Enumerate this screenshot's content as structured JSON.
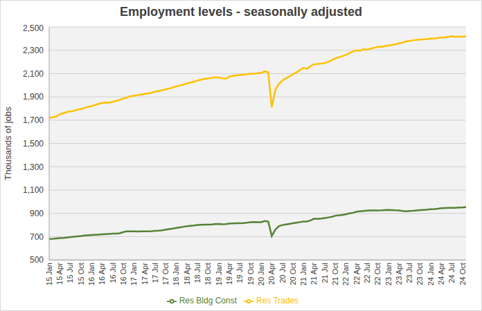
{
  "chart_data": {
    "type": "line",
    "title": "Employment levels - seasonally adjusted",
    "y_label": "Thousands of jobs",
    "categories": [
      "15 Jan",
      null,
      null,
      "15 Apr",
      null,
      null,
      "15 Jul",
      null,
      null,
      "15 Oct",
      null,
      null,
      "16 Jan",
      null,
      null,
      "16 Apr",
      null,
      null,
      "16 Jul",
      null,
      null,
      "16 Oct",
      null,
      null,
      "17 Jan",
      null,
      null,
      "17 Apr",
      null,
      null,
      "17 Jul",
      null,
      null,
      "17 Oct",
      null,
      null,
      "18 Jan",
      null,
      null,
      "18 Apr",
      null,
      null,
      "18 Jul",
      null,
      null,
      "18 Oct",
      null,
      null,
      "19 Jan",
      null,
      null,
      "19 Apr",
      null,
      null,
      "19 Jul",
      null,
      null,
      "19 Oct",
      null,
      null,
      "20 Jan",
      null,
      null,
      "20 Apr",
      null,
      null,
      "20 Jul",
      null,
      null,
      "20 Oct",
      null,
      null,
      "21 Jan",
      null,
      null,
      "21 Apr",
      null,
      null,
      "21 Jul",
      null,
      null,
      "21 Oct",
      null,
      null,
      "22 Jan",
      null,
      null,
      "22 Apr",
      null,
      null,
      "22 Jul",
      null,
      null,
      "22 Oct",
      null,
      null,
      "23 Jan",
      null,
      null,
      "23 Apr",
      null,
      null,
      "23 Jul",
      null,
      null,
      "23 Oct",
      null,
      null,
      "24 Jan",
      null,
      null,
      "24 Apr",
      null,
      null,
      "24 Jul",
      null,
      null,
      "24 Oct",
      null
    ],
    "series": [
      {
        "name": "Res Bldg Const",
        "color": "#548235",
        "values": [
          680,
          682,
          685,
          688,
          690,
          693,
          697,
          700,
          703,
          706,
          710,
          712,
          714,
          716,
          718,
          720,
          722,
          724,
          726,
          727,
          730,
          740,
          745,
          745,
          745,
          744,
          746,
          745,
          745,
          747,
          750,
          752,
          755,
          760,
          765,
          770,
          775,
          780,
          785,
          790,
          793,
          796,
          800,
          802,
          803,
          804,
          805,
          808,
          810,
          806,
          808,
          812,
          814,
          815,
          815,
          817,
          820,
          825,
          826,
          825,
          825,
          835,
          830,
          705,
          760,
          790,
          800,
          805,
          810,
          815,
          820,
          825,
          830,
          830,
          840,
          855,
          852,
          855,
          860,
          865,
          870,
          880,
          883,
          887,
          893,
          900,
          905,
          915,
          918,
          920,
          923,
          925,
          925,
          925,
          926,
          928,
          930,
          928,
          926,
          925,
          920,
          918,
          920,
          922,
          925,
          928,
          930,
          932,
          935,
          937,
          940,
          945,
          946,
          947,
          948,
          948,
          950,
          950,
          955
        ]
      },
      {
        "name": "Res Trades",
        "color": "#ffc000",
        "values": [
          1720,
          1725,
          1730,
          1750,
          1760,
          1770,
          1775,
          1780,
          1790,
          1795,
          1805,
          1815,
          1820,
          1830,
          1840,
          1848,
          1852,
          1850,
          1858,
          1865,
          1875,
          1885,
          1895,
          1905,
          1910,
          1915,
          1920,
          1925,
          1930,
          1935,
          1945,
          1950,
          1958,
          1965,
          1972,
          1980,
          1990,
          1998,
          2005,
          2015,
          2022,
          2030,
          2040,
          2048,
          2055,
          2058,
          2062,
          2068,
          2065,
          2060,
          2055,
          2075,
          2080,
          2085,
          2088,
          2090,
          2095,
          2100,
          2098,
          2102,
          2105,
          2120,
          2110,
          1810,
          1960,
          2010,
          2040,
          2060,
          2075,
          2095,
          2110,
          2130,
          2150,
          2140,
          2165,
          2180,
          2183,
          2186,
          2190,
          2200,
          2215,
          2230,
          2240,
          2250,
          2260,
          2275,
          2290,
          2300,
          2295,
          2310,
          2305,
          2315,
          2320,
          2330,
          2330,
          2335,
          2340,
          2345,
          2350,
          2360,
          2365,
          2375,
          2380,
          2385,
          2390,
          2390,
          2395,
          2395,
          2400,
          2400,
          2405,
          2410,
          2410,
          2415,
          2420,
          2415,
          2418,
          2415,
          2420
        ]
      }
    ],
    "ylim": [
      500,
      2500
    ],
    "yticks": [
      500,
      700,
      900,
      {
        "value": 1100,
        "label": "1,100"
      },
      {
        "value": 1300,
        "label": "1,300"
      },
      {
        "value": 1500,
        "label": "1,500"
      },
      {
        "value": 1700,
        "label": "1,700"
      },
      {
        "value": 1900,
        "label": "1,900"
      },
      {
        "value": 2100,
        "label": "2,100"
      },
      {
        "value": 2300,
        "label": "2,300"
      },
      {
        "value": 2500,
        "label": "2,500"
      }
    ],
    "grid": true,
    "legend": "bottom"
  }
}
